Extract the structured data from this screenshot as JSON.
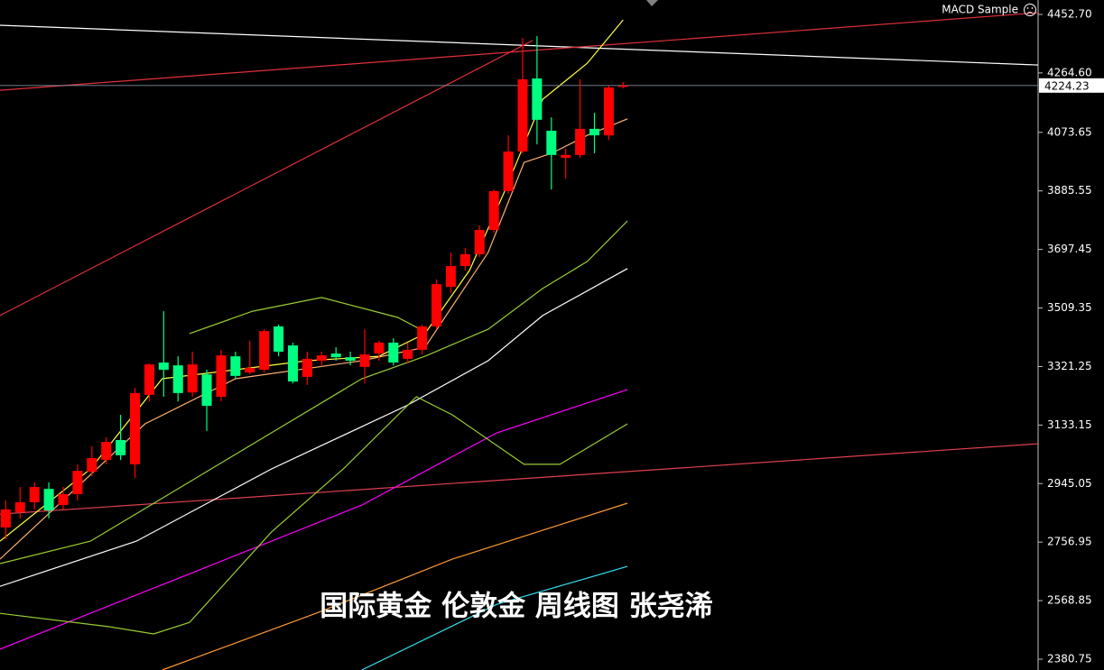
{
  "header": {
    "indicator": "MACD Sample"
  },
  "chart_data": {
    "type": "candlestick",
    "caption": "国际黄金 伦敦金  周线图 张尧浠",
    "xlim": [
      -0.4,
      71.9
    ],
    "ylim": [
      2346,
      4499
    ],
    "yticks": [
      {
        "value": 4452.7,
        "label": "4452.70"
      },
      {
        "value": 4264.6,
        "label": "4264.60"
      },
      4073.65,
      3885.55,
      3697.45,
      3509.35,
      3321.25,
      3133.15,
      2945.05,
      2756.95,
      2568.85,
      2380.75
    ],
    "current_price": 4224.23,
    "up_color": "#ff0000",
    "down_color": "#00ff80",
    "open": [
      2804,
      2853,
      2885,
      2928,
      2876,
      2911,
      2983,
      3021,
      3085,
      3007,
      3230,
      3334,
      3325,
      3238,
      3296,
      3224,
      3354,
      3302,
      3311,
      3450,
      3389,
      3288,
      3340,
      3363,
      3351,
      3320,
      3363,
      3398,
      3346,
      3375,
      3450,
      3577,
      3644,
      3682,
      3760,
      3885,
      4012,
      4247,
      4079,
      3992,
      4001,
      4085,
      4064,
      4221
    ],
    "high": [
      2891,
      2934,
      2949,
      2949,
      2934,
      3007,
      3065,
      3094,
      3166,
      3253,
      3331,
      3499,
      3354,
      3369,
      3311,
      3375,
      3369,
      3404,
      3441,
      3456,
      3398,
      3369,
      3369,
      3383,
      3369,
      3441,
      3404,
      3412,
      3398,
      3456,
      3601,
      3688,
      3702,
      3775,
      3890,
      4064,
      4377,
      4383,
      4122,
      4021,
      4244,
      4137,
      4224,
      4235
    ],
    "low": [
      2766,
      2833,
      2862,
      2833,
      2862,
      2891,
      2969,
      3007,
      3021,
      2963,
      3209,
      3224,
      3209,
      3224,
      3114,
      3209,
      3282,
      3296,
      3302,
      3354,
      3267,
      3262,
      3325,
      3340,
      3325,
      3267,
      3340,
      3325,
      3331,
      3360,
      3441,
      3557,
      3630,
      3673,
      3751,
      3876,
      4006,
      4035,
      3890,
      3925,
      3992,
      4006,
      4050,
      4215
    ],
    "close": [
      2862,
      2885,
      2934,
      2859,
      2911,
      2986,
      3027,
      3079,
      3036,
      3236,
      3328,
      3311,
      3236,
      3328,
      3195,
      3357,
      3291,
      3317,
      3435,
      3369,
      3273,
      3346,
      3357,
      3351,
      3340,
      3360,
      3398,
      3334,
      3375,
      3450,
      3586,
      3644,
      3682,
      3760,
      3885,
      4012,
      4244,
      4114,
      4001,
      4001,
      4085,
      4064,
      4218,
      4224
    ],
    "lines": [
      {
        "color": "#ffffff",
        "x": [
          -0.4,
          71.9
        ],
        "values": [
          4418,
          4290
        ]
      },
      {
        "color": "#e0303a",
        "x": [
          -0.4,
          71.9
        ],
        "values": [
          4209,
          4458
        ]
      },
      {
        "color": "#e0303a",
        "x": [
          -0.4,
          36.7
        ],
        "values": [
          3485,
          4369
        ]
      },
      {
        "color": "#e04050",
        "x": [
          -0.4,
          71.9
        ],
        "values": [
          2847,
          3073
        ]
      },
      {
        "color": "#ffff40",
        "x": [
          -0.4,
          5.9,
          10.9,
          16.0,
          21.0,
          26.0,
          29.2,
          32.3,
          34.8,
          37.4,
          40.5,
          43.0
        ],
        "values": [
          2760,
          2992,
          3282,
          3311,
          3340,
          3354,
          3427,
          3630,
          3890,
          4180,
          4296,
          4435
        ]
      },
      {
        "color": "#ffb070",
        "x": [
          -0.4,
          9.7,
          16.0,
          24.8,
          29.2,
          33.6,
          36.1,
          38.0,
          40.5,
          43.3
        ],
        "values": [
          2702,
          3137,
          3282,
          3340,
          3383,
          3688,
          3977,
          4006,
          4064,
          4117
        ]
      },
      {
        "color": "#9acd32",
        "x": [
          -0.4,
          5.9,
          12.2,
          18.5,
          24.8,
          29.2,
          33.6,
          37.4,
          40.5,
          43.3
        ],
        "values": [
          2688,
          2760,
          2934,
          3108,
          3282,
          3354,
          3441,
          3572,
          3659,
          3789
        ]
      },
      {
        "color": "#ffffff",
        "x": [
          -0.4,
          9.1,
          18.5,
          27.9,
          33.6,
          37.4,
          43.3
        ],
        "values": [
          2615,
          2760,
          2992,
          3195,
          3340,
          3485,
          3636
        ]
      },
      {
        "color": "#ff00ff",
        "x": [
          -0.4,
          12.2,
          24.8,
          34.2,
          43.3
        ],
        "values": [
          2413,
          2644,
          2876,
          3108,
          3247
        ]
      },
      {
        "color": "#9acd32",
        "x": [
          -0.4,
          7.2,
          10.3,
          12.8,
          18.5,
          23.5,
          28.6,
          31.1,
          36.1,
          38.6,
          43.3
        ],
        "values": [
          2528,
          2485,
          2462,
          2499,
          2789,
          2992,
          3224,
          3166,
          3007,
          3007,
          3137
        ]
      },
      {
        "color": "#9acd32",
        "x": [
          12.8,
          17.2,
          22.0,
          27.3,
          29.2
        ],
        "values": [
          3427,
          3499,
          3543,
          3479,
          3433
        ]
      },
      {
        "color": "#ff9933",
        "x": [
          10.9,
          21.6,
          31.1,
          43.3
        ],
        "values": [
          2346,
          2528,
          2702,
          2882
        ]
      },
      {
        "color": "#33ddee",
        "x": [
          24.8,
          34.2,
          43.3
        ],
        "values": [
          2346,
          2557,
          2679
        ]
      }
    ]
  }
}
